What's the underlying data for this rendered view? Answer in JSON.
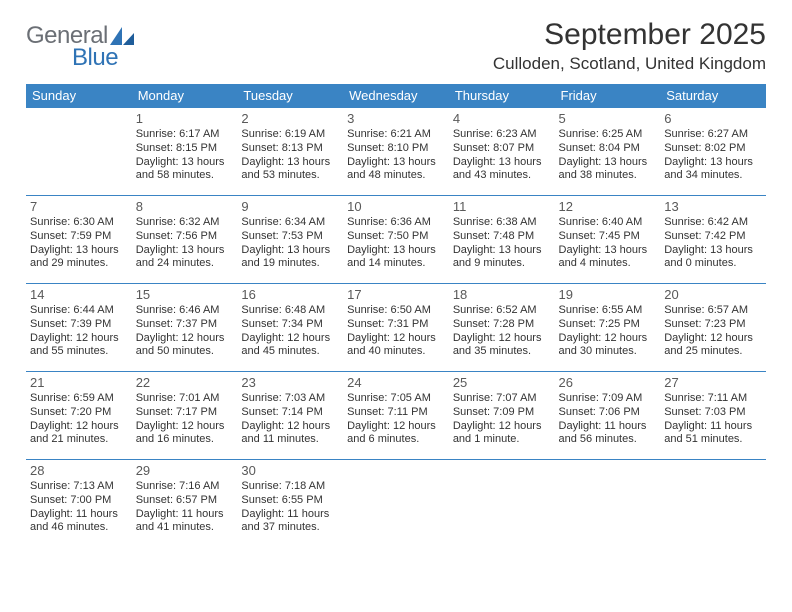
{
  "logo": {
    "text1": "General",
    "text2": "Blue"
  },
  "title": "September 2025",
  "location": "Culloden, Scotland, United Kingdom",
  "header_bg": "#3a84c4",
  "header_fg": "#ffffff",
  "border_color": "#3a84c4",
  "weekdays": [
    "Sunday",
    "Monday",
    "Tuesday",
    "Wednesday",
    "Thursday",
    "Friday",
    "Saturday"
  ],
  "weeks": [
    [
      {
        "n": "",
        "sunrise": "",
        "sunset": "",
        "daylight": ""
      },
      {
        "n": "1",
        "sunrise": "Sunrise: 6:17 AM",
        "sunset": "Sunset: 8:15 PM",
        "daylight": "Daylight: 13 hours and 58 minutes."
      },
      {
        "n": "2",
        "sunrise": "Sunrise: 6:19 AM",
        "sunset": "Sunset: 8:13 PM",
        "daylight": "Daylight: 13 hours and 53 minutes."
      },
      {
        "n": "3",
        "sunrise": "Sunrise: 6:21 AM",
        "sunset": "Sunset: 8:10 PM",
        "daylight": "Daylight: 13 hours and 48 minutes."
      },
      {
        "n": "4",
        "sunrise": "Sunrise: 6:23 AM",
        "sunset": "Sunset: 8:07 PM",
        "daylight": "Daylight: 13 hours and 43 minutes."
      },
      {
        "n": "5",
        "sunrise": "Sunrise: 6:25 AM",
        "sunset": "Sunset: 8:04 PM",
        "daylight": "Daylight: 13 hours and 38 minutes."
      },
      {
        "n": "6",
        "sunrise": "Sunrise: 6:27 AM",
        "sunset": "Sunset: 8:02 PM",
        "daylight": "Daylight: 13 hours and 34 minutes."
      }
    ],
    [
      {
        "n": "7",
        "sunrise": "Sunrise: 6:30 AM",
        "sunset": "Sunset: 7:59 PM",
        "daylight": "Daylight: 13 hours and 29 minutes."
      },
      {
        "n": "8",
        "sunrise": "Sunrise: 6:32 AM",
        "sunset": "Sunset: 7:56 PM",
        "daylight": "Daylight: 13 hours and 24 minutes."
      },
      {
        "n": "9",
        "sunrise": "Sunrise: 6:34 AM",
        "sunset": "Sunset: 7:53 PM",
        "daylight": "Daylight: 13 hours and 19 minutes."
      },
      {
        "n": "10",
        "sunrise": "Sunrise: 6:36 AM",
        "sunset": "Sunset: 7:50 PM",
        "daylight": "Daylight: 13 hours and 14 minutes."
      },
      {
        "n": "11",
        "sunrise": "Sunrise: 6:38 AM",
        "sunset": "Sunset: 7:48 PM",
        "daylight": "Daylight: 13 hours and 9 minutes."
      },
      {
        "n": "12",
        "sunrise": "Sunrise: 6:40 AM",
        "sunset": "Sunset: 7:45 PM",
        "daylight": "Daylight: 13 hours and 4 minutes."
      },
      {
        "n": "13",
        "sunrise": "Sunrise: 6:42 AM",
        "sunset": "Sunset: 7:42 PM",
        "daylight": "Daylight: 13 hours and 0 minutes."
      }
    ],
    [
      {
        "n": "14",
        "sunrise": "Sunrise: 6:44 AM",
        "sunset": "Sunset: 7:39 PM",
        "daylight": "Daylight: 12 hours and 55 minutes."
      },
      {
        "n": "15",
        "sunrise": "Sunrise: 6:46 AM",
        "sunset": "Sunset: 7:37 PM",
        "daylight": "Daylight: 12 hours and 50 minutes."
      },
      {
        "n": "16",
        "sunrise": "Sunrise: 6:48 AM",
        "sunset": "Sunset: 7:34 PM",
        "daylight": "Daylight: 12 hours and 45 minutes."
      },
      {
        "n": "17",
        "sunrise": "Sunrise: 6:50 AM",
        "sunset": "Sunset: 7:31 PM",
        "daylight": "Daylight: 12 hours and 40 minutes."
      },
      {
        "n": "18",
        "sunrise": "Sunrise: 6:52 AM",
        "sunset": "Sunset: 7:28 PM",
        "daylight": "Daylight: 12 hours and 35 minutes."
      },
      {
        "n": "19",
        "sunrise": "Sunrise: 6:55 AM",
        "sunset": "Sunset: 7:25 PM",
        "daylight": "Daylight: 12 hours and 30 minutes."
      },
      {
        "n": "20",
        "sunrise": "Sunrise: 6:57 AM",
        "sunset": "Sunset: 7:23 PM",
        "daylight": "Daylight: 12 hours and 25 minutes."
      }
    ],
    [
      {
        "n": "21",
        "sunrise": "Sunrise: 6:59 AM",
        "sunset": "Sunset: 7:20 PM",
        "daylight": "Daylight: 12 hours and 21 minutes."
      },
      {
        "n": "22",
        "sunrise": "Sunrise: 7:01 AM",
        "sunset": "Sunset: 7:17 PM",
        "daylight": "Daylight: 12 hours and 16 minutes."
      },
      {
        "n": "23",
        "sunrise": "Sunrise: 7:03 AM",
        "sunset": "Sunset: 7:14 PM",
        "daylight": "Daylight: 12 hours and 11 minutes."
      },
      {
        "n": "24",
        "sunrise": "Sunrise: 7:05 AM",
        "sunset": "Sunset: 7:11 PM",
        "daylight": "Daylight: 12 hours and 6 minutes."
      },
      {
        "n": "25",
        "sunrise": "Sunrise: 7:07 AM",
        "sunset": "Sunset: 7:09 PM",
        "daylight": "Daylight: 12 hours and 1 minute."
      },
      {
        "n": "26",
        "sunrise": "Sunrise: 7:09 AM",
        "sunset": "Sunset: 7:06 PM",
        "daylight": "Daylight: 11 hours and 56 minutes."
      },
      {
        "n": "27",
        "sunrise": "Sunrise: 7:11 AM",
        "sunset": "Sunset: 7:03 PM",
        "daylight": "Daylight: 11 hours and 51 minutes."
      }
    ],
    [
      {
        "n": "28",
        "sunrise": "Sunrise: 7:13 AM",
        "sunset": "Sunset: 7:00 PM",
        "daylight": "Daylight: 11 hours and 46 minutes."
      },
      {
        "n": "29",
        "sunrise": "Sunrise: 7:16 AM",
        "sunset": "Sunset: 6:57 PM",
        "daylight": "Daylight: 11 hours and 41 minutes."
      },
      {
        "n": "30",
        "sunrise": "Sunrise: 7:18 AM",
        "sunset": "Sunset: 6:55 PM",
        "daylight": "Daylight: 11 hours and 37 minutes."
      },
      {
        "n": "",
        "sunrise": "",
        "sunset": "",
        "daylight": ""
      },
      {
        "n": "",
        "sunrise": "",
        "sunset": "",
        "daylight": ""
      },
      {
        "n": "",
        "sunrise": "",
        "sunset": "",
        "daylight": ""
      },
      {
        "n": "",
        "sunrise": "",
        "sunset": "",
        "daylight": ""
      }
    ]
  ]
}
